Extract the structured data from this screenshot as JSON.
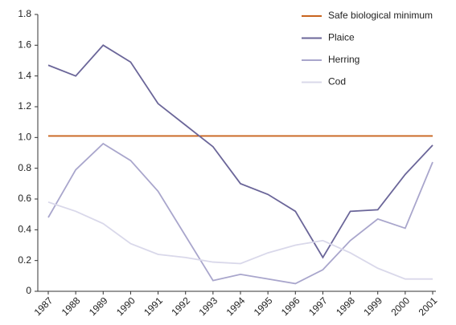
{
  "chart_data": {
    "type": "line",
    "categories": [
      "1987",
      "1988",
      "1989",
      "1990",
      "1991",
      "1992",
      "1993",
      "1994",
      "1995",
      "1996",
      "1997",
      "1998",
      "1999",
      "2000",
      "2001"
    ],
    "series": [
      {
        "name": "Safe biological minimum",
        "color": "#c8641e",
        "values": [
          1.01,
          1.01,
          1.01,
          1.01,
          1.01,
          1.01,
          1.01,
          1.01,
          1.01,
          1.01,
          1.01,
          1.01,
          1.01,
          1.01,
          1.01
        ]
      },
      {
        "name": "Plaice",
        "color": "#6b6699",
        "values": [
          1.47,
          1.4,
          1.6,
          1.49,
          1.22,
          1.08,
          0.94,
          0.7,
          0.63,
          0.52,
          0.22,
          0.52,
          0.53,
          0.76,
          0.95
        ]
      },
      {
        "name": "Herring",
        "color": "#a9a6cc",
        "values": [
          0.48,
          0.79,
          0.96,
          0.85,
          0.65,
          0.36,
          0.07,
          0.11,
          0.08,
          0.05,
          0.14,
          0.33,
          0.47,
          0.41,
          0.84
        ]
      },
      {
        "name": "Cod",
        "color": "#d9d8ea",
        "values": [
          0.58,
          0.52,
          0.44,
          0.31,
          0.24,
          0.22,
          0.19,
          0.18,
          0.25,
          0.3,
          0.33,
          0.25,
          0.15,
          0.08,
          0.08
        ]
      }
    ],
    "ylim": [
      0,
      1.8
    ],
    "yticks": [
      0,
      0.2,
      0.4,
      0.6,
      {
        "value": 0.8,
        "label": "0.8"
      },
      {
        "value": 1,
        "label": "1.0"
      },
      1.2,
      1.4,
      1.6,
      1.8
    ],
    "grid": false
  }
}
